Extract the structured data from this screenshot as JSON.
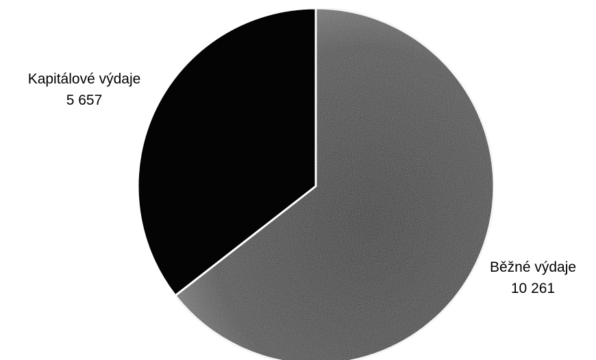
{
  "chart_data": {
    "type": "pie",
    "title": "",
    "legend": "none",
    "slices": [
      {
        "label": "Běžné výdaje",
        "value_text": "10 261",
        "value": 10261,
        "color": "#3c3c3c",
        "label_side": "right"
      },
      {
        "label": "Kapitálové výdaje",
        "value_text": "5 657",
        "value": 5657,
        "color": "#040404",
        "label_side": "left"
      }
    ]
  }
}
